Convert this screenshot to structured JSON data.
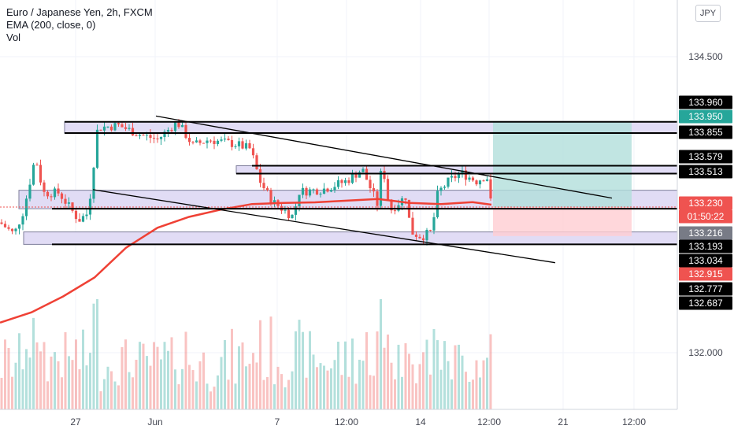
{
  "header": {
    "title": "Euro / Japanese Yen, 2h, FXCM",
    "indicator": "EMA (200, close, 0)",
    "volume": "Vol"
  },
  "currency_button": "JPY",
  "colors": {
    "up": "#26a69a",
    "down": "#ef5350",
    "ema": "#ef4135",
    "zone_fill": "#e1dcf5",
    "target_zone": "#b2dfdb",
    "stop_zone": "#ffcdd2"
  },
  "chart_data": {
    "type": "candlestick",
    "y_axis": {
      "ticks": [
        "134.500",
        "132.000"
      ],
      "range": [
        131.55,
        134.92
      ]
    },
    "x_axis": {
      "ticks": [
        "27",
        "Jun",
        "7",
        "12:00",
        "14",
        "12:00",
        "21",
        "12:00"
      ]
    },
    "price_labels": [
      {
        "value": "133.960",
        "style": "black"
      },
      {
        "value": "133.950",
        "style": "green"
      },
      {
        "value": "133.855",
        "style": "black"
      },
      {
        "value": "133.579",
        "style": "black"
      },
      {
        "value": "133.513",
        "style": "black"
      },
      {
        "value": "133.230",
        "style": "red"
      },
      {
        "value": "01:50:22",
        "style": "red-countdown"
      },
      {
        "value": "133.216",
        "style": "gray"
      },
      {
        "value": "133.193",
        "style": "black"
      },
      {
        "value": "133.034",
        "style": "black"
      },
      {
        "value": "132.915",
        "style": "red"
      },
      {
        "value": "132.777",
        "style": "black"
      },
      {
        "value": "132.687",
        "style": "black"
      }
    ],
    "horizontal_levels": [
      133.95,
      133.855,
      133.579,
      133.513,
      133.216,
      132.915
    ],
    "zones": [
      [
        133.855,
        133.95
      ],
      [
        133.513,
        133.579
      ],
      [
        133.216,
        133.372
      ],
      [
        132.915,
        133.02
      ]
    ],
    "trendlines": [
      {
        "from": [
          198,
          133.999
        ],
        "to": [
          777,
          133.306
        ]
      },
      {
        "from": [
          118,
          133.377
        ],
        "to": [
          705,
          132.76
        ]
      }
    ],
    "long_position": {
      "entry": 133.23,
      "target": 133.95,
      "stop": 132.985
    },
    "current_price": 133.23,
    "ema_path": [
      [
        0,
        132.254
      ],
      [
        40,
        132.341
      ],
      [
        80,
        132.475
      ],
      [
        120,
        132.635
      ],
      [
        160,
        132.886
      ],
      [
        200,
        133.055
      ],
      [
        240,
        133.147
      ],
      [
        280,
        133.208
      ],
      [
        320,
        133.255
      ],
      [
        360,
        133.265
      ],
      [
        400,
        133.27
      ],
      [
        440,
        133.284
      ],
      [
        480,
        133.298
      ],
      [
        520,
        133.265
      ],
      [
        560,
        133.255
      ],
      [
        600,
        133.272
      ],
      [
        624,
        133.25
      ]
    ]
  }
}
